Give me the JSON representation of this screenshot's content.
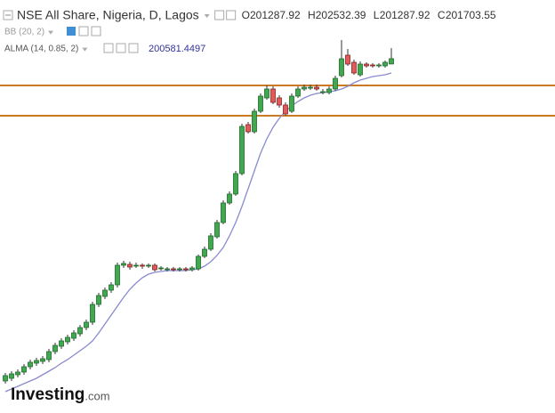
{
  "chart_data": {
    "type": "candlestick",
    "title": "NSE All Share, Nigeria, D, Lagos",
    "ohlc_labels": [
      "O",
      "H",
      "L",
      "C"
    ],
    "indicators": [
      {
        "name": "BB (20, 2)"
      },
      {
        "name": "ALMA (14, 0.85, 2)"
      }
    ],
    "watermark": [
      "Investing",
      ".com"
    ],
    "up_color": "#41a84f",
    "down_color": "#e25b5b",
    "ylim": [
      173840,
      206320
    ],
    "open": [
      176360,
      176570,
      176850,
      177060,
      177480,
      177760,
      177900,
      178040,
      178670,
      179090,
      179440,
      179720,
      180070,
      180560,
      180980,
      182380,
      183010,
      183500,
      183920,
      185460,
      185530,
      185460,
      185460,
      185390,
      185460,
      185180,
      185110,
      185180,
      185110,
      185180,
      185110,
      185180,
      186160,
      186720,
      187700,
      188820,
      190360,
      191060,
      192670,
      196520,
      195960,
      197570,
      198620,
      199320,
      198620,
      198060,
      197570,
      198760,
      199320,
      199390,
      199460,
      199040,
      199040,
      199320,
      200370,
      201980,
      201420,
      200440,
      201280,
      201210,
      201140,
      201140,
      201287.92
    ],
    "high": [
      176990,
      177130,
      177270,
      177690,
      178040,
      178180,
      178320,
      178880,
      179370,
      179720,
      180000,
      180350,
      180770,
      181190,
      182590,
      183290,
      183710,
      184130,
      185670,
      185810,
      185740,
      185670,
      185600,
      185600,
      185600,
      185390,
      185320,
      185320,
      185320,
      185320,
      185390,
      186300,
      186930,
      187980,
      189030,
      190570,
      191270,
      192880,
      196590,
      196730,
      197780,
      198970,
      199600,
      199530,
      198830,
      198270,
      198970,
      199530,
      199670,
      199670,
      199670,
      199320,
      199530,
      200370,
      203170,
      202470,
      201630,
      201490,
      201420,
      201350,
      201350,
      201560,
      202532.39
    ],
    "low": [
      176150,
      176360,
      176640,
      176850,
      177270,
      177550,
      177690,
      177830,
      178460,
      178880,
      179230,
      179510,
      179860,
      180350,
      180770,
      182170,
      182800,
      183290,
      183710,
      185250,
      185110,
      185250,
      185180,
      185250,
      184970,
      185040,
      184970,
      184970,
      184970,
      184970,
      184970,
      185040,
      186020,
      186580,
      187560,
      188680,
      190220,
      190920,
      192530,
      195820,
      195820,
      197430,
      198480,
      198130,
      197850,
      197220,
      197430,
      198620,
      199180,
      199250,
      199180,
      198900,
      198900,
      199180,
      200230,
      201140,
      200440,
      200300,
      201000,
      201000,
      201000,
      201000,
      201287.92
    ],
    "close": [
      176780,
      176920,
      177060,
      177480,
      177830,
      177970,
      178110,
      178670,
      179160,
      179510,
      179790,
      180140,
      180560,
      180980,
      182380,
      183080,
      183500,
      183920,
      185460,
      185600,
      185320,
      185460,
      185390,
      185460,
      185110,
      185250,
      185180,
      185110,
      185180,
      185110,
      185250,
      186160,
      186720,
      187770,
      188820,
      190360,
      191060,
      192670,
      196380,
      195960,
      197570,
      198760,
      199320,
      198270,
      198060,
      197360,
      198760,
      199320,
      199460,
      199460,
      199320,
      199110,
      199320,
      200160,
      201700,
      201280,
      200580,
      201280,
      201140,
      201140,
      201210,
      201420,
      201703.55
    ],
    "series": [
      {
        "name": "ALMA (14, 0.85, 2)",
        "color": "#8a8ad0",
        "values": [
          175520,
          175730,
          175940,
          176150,
          176360,
          176570,
          176850,
          177130,
          177410,
          177760,
          178040,
          178390,
          178740,
          179090,
          179510,
          180140,
          180840,
          181540,
          182240,
          182940,
          183570,
          184060,
          184480,
          184760,
          184900,
          184970,
          185040,
          185040,
          185040,
          185040,
          185110,
          185180,
          185390,
          185740,
          186230,
          186860,
          187770,
          188820,
          190080,
          191480,
          192880,
          194280,
          195400,
          196310,
          197010,
          197570,
          197990,
          198340,
          198620,
          198830,
          198970,
          199040,
          199110,
          199180,
          199320,
          199530,
          199810,
          200020,
          200160,
          200300,
          200370,
          200440,
          200581.4497
        ]
      }
    ],
    "levels": [
      {
        "value": 199600,
        "color": "#cc7a22"
      },
      {
        "value": 197220,
        "color": "#cc7a22"
      }
    ]
  }
}
